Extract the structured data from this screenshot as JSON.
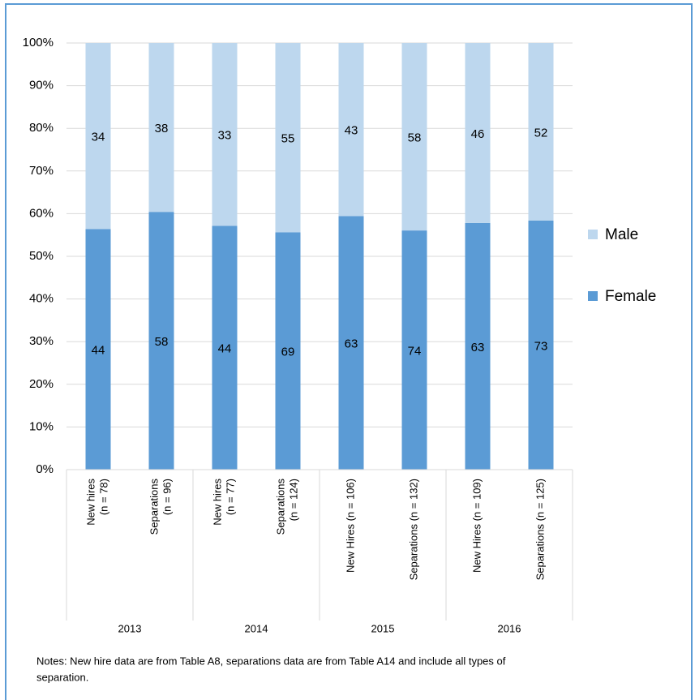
{
  "chart_data": {
    "type": "stacked_bar",
    "stack": "percent",
    "groups": [
      "2013",
      "2014",
      "2015",
      "2016"
    ],
    "categories": [
      [
        "New hires",
        "(n = 78)"
      ],
      [
        "Separations",
        "(n = 96)"
      ],
      [
        "New hires",
        "(n = 77)"
      ],
      [
        "Separations",
        "(n = 124)"
      ],
      [
        "New Hires (n = 106)"
      ],
      [
        "Separations (n = 132)"
      ],
      [
        "New Hires (n = 109)"
      ],
      [
        "Separations (n = 125)"
      ]
    ],
    "series": [
      {
        "name": "Female",
        "color": "#5b9bd5",
        "values": [
          44,
          58,
          44,
          69,
          63,
          74,
          63,
          73
        ]
      },
      {
        "name": "Male",
        "color": "#bdd7ee",
        "values": [
          34,
          38,
          33,
          55,
          43,
          58,
          46,
          52
        ]
      }
    ],
    "ylim": [
      0,
      100
    ],
    "yticks": [
      {
        "value": 0,
        "label": "0%"
      },
      {
        "value": 10,
        "label": "10%"
      },
      {
        "value": 20,
        "label": "20%"
      },
      {
        "value": 30,
        "label": "30%"
      },
      {
        "value": 40,
        "label": "40%"
      },
      {
        "value": 50,
        "label": "50%"
      },
      {
        "value": 60,
        "label": "60%"
      },
      {
        "value": 70,
        "label": "70%"
      },
      {
        "value": 80,
        "label": "80%"
      },
      {
        "value": 90,
        "label": "90%"
      },
      {
        "value": 100,
        "label": "100%"
      }
    ],
    "grid": true,
    "legend": "right",
    "notes": [
      "Notes:  New hire data are from Table A8, separations data are from Table A14 and include all types of",
      "separation."
    ]
  }
}
